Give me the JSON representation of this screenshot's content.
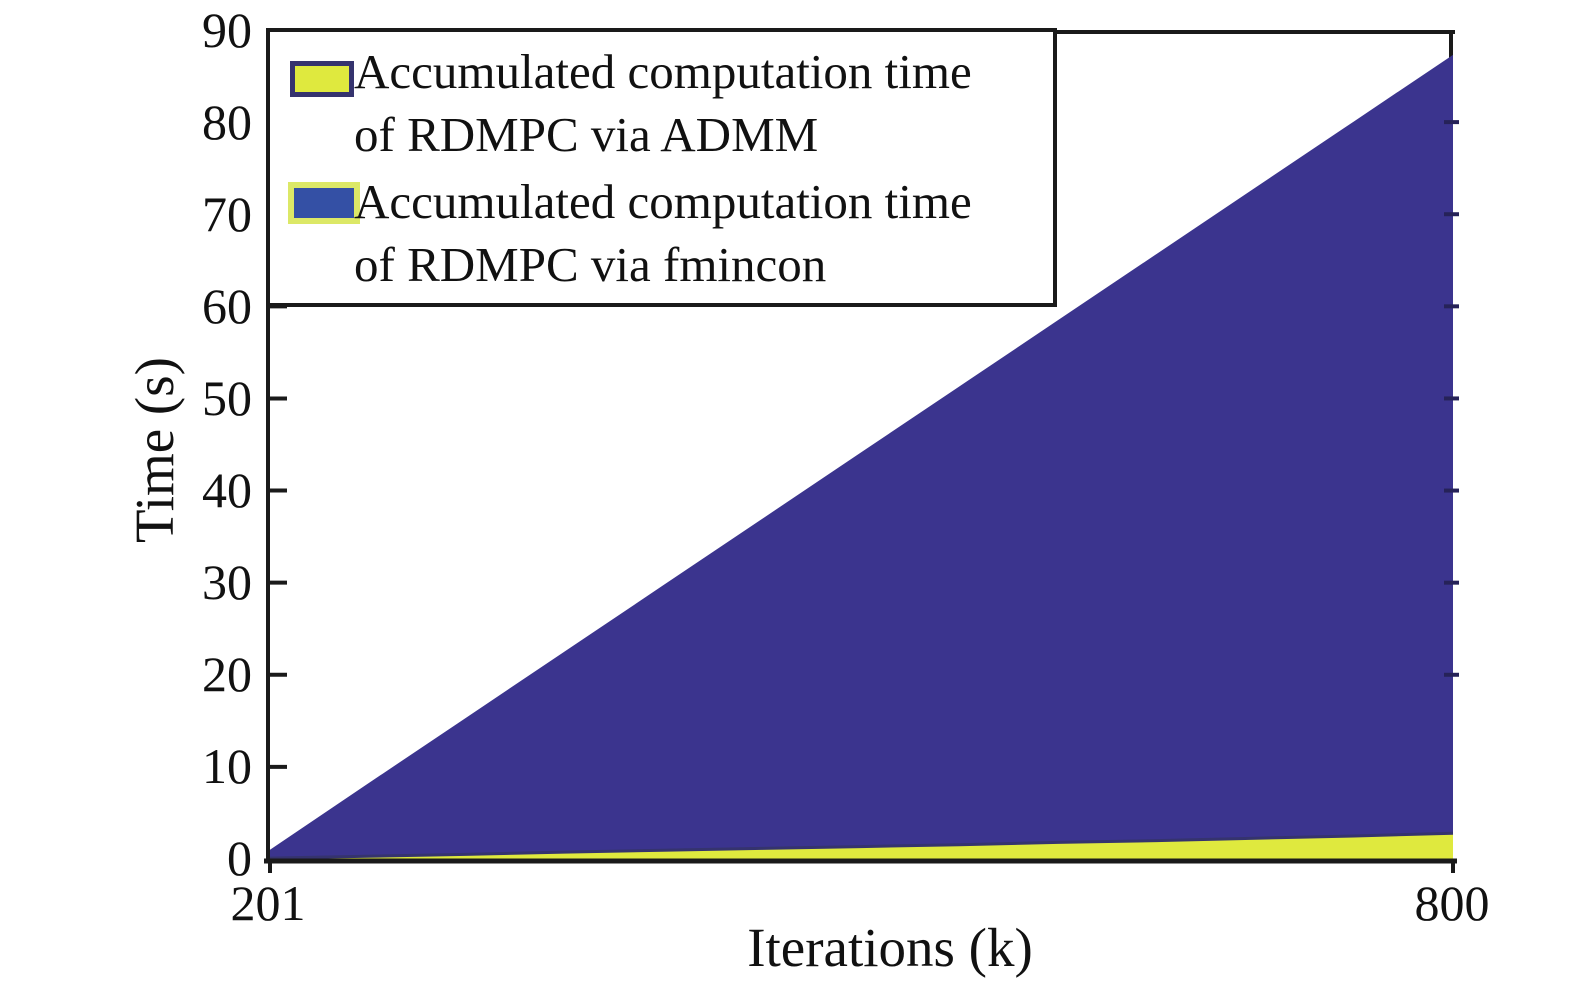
{
  "axes": {
    "x_label": "Iterations (k)",
    "y_label": "Time (s)",
    "x_tick_labels": [
      "201",
      "800"
    ],
    "y_tick_labels": [
      "90",
      "80",
      "70",
      "60",
      "50",
      "40",
      "30",
      "20",
      "10",
      "0"
    ]
  },
  "legend": {
    "entries": [
      {
        "lines": [
          "Accumulated computation time",
          "of RDMPC via ADMM"
        ],
        "swatch_fill": "#dfe93e",
        "swatch_border": "#35336e"
      },
      {
        "lines": [
          "Accumulated computation time",
          "of RDMPC via fmincon"
        ],
        "swatch_fill": "#3450a5",
        "swatch_border": "#dce867"
      }
    ]
  },
  "colors": {
    "frame": "#1a1a1a",
    "right_tick": "#262258",
    "area_admm": "#dfe93e",
    "area_admm_edge": "#35336e",
    "area_fmincon": "#3b348e",
    "text": "#111111"
  },
  "chart_data": {
    "type": "area",
    "title": "",
    "xlabel": "Iterations (k)",
    "ylabel": "Time (s)",
    "xlim": [
      201,
      800
    ],
    "ylim": [
      0,
      90
    ],
    "x_ticks": [
      201,
      800
    ],
    "y_ticks": [
      0,
      10,
      20,
      30,
      40,
      50,
      60,
      70,
      80,
      90
    ],
    "grid": false,
    "legend_position": "northwest-inside",
    "x": [
      201,
      250,
      300,
      350,
      400,
      450,
      500,
      550,
      600,
      650,
      700,
      750,
      800
    ],
    "series": [
      {
        "name": "Accumulated computation time of RDMPC via ADMM",
        "color": "#dfe93e",
        "edge_color": "#35336e",
        "edge_width": 3,
        "values": [
          0.1,
          0.3,
          0.5,
          0.75,
          0.95,
          1.15,
          1.35,
          1.55,
          1.8,
          2.0,
          2.25,
          2.5,
          2.8
        ]
      },
      {
        "name": "Accumulated computation time of RDMPC via fmincon",
        "color": "#3b348e",
        "edge_color": "#dce867",
        "edge_width": 0,
        "values": [
          1.0,
          8.1,
          15.3,
          22.5,
          29.7,
          36.9,
          44.1,
          51.3,
          58.5,
          65.7,
          72.9,
          80.1,
          87.3
        ]
      }
    ]
  }
}
